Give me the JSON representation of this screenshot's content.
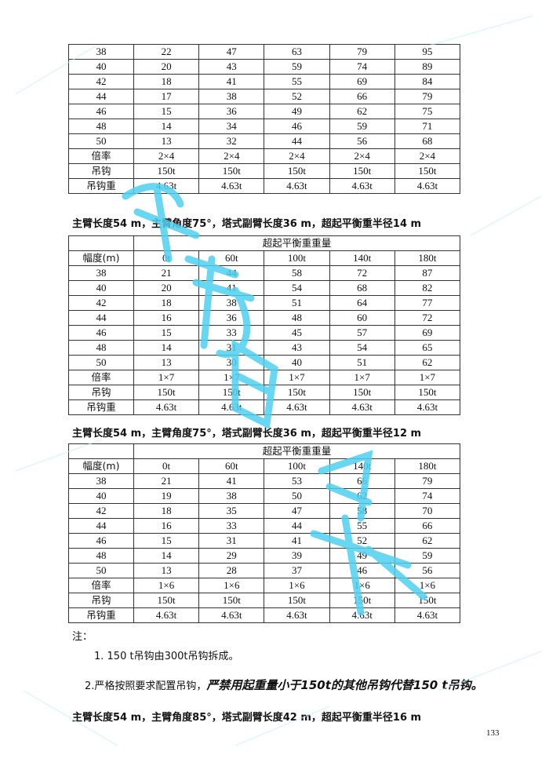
{
  "tables": [
    {
      "group_header": null,
      "col_headers": null,
      "rows": [
        [
          "38",
          "22",
          "47",
          "63",
          "79",
          "95"
        ],
        [
          "40",
          "20",
          "43",
          "59",
          "74",
          "89"
        ],
        [
          "42",
          "18",
          "41",
          "55",
          "69",
          "84"
        ],
        [
          "44",
          "17",
          "38",
          "52",
          "66",
          "79"
        ],
        [
          "46",
          "15",
          "36",
          "49",
          "62",
          "75"
        ],
        [
          "48",
          "14",
          "34",
          "46",
          "59",
          "71"
        ],
        [
          "50",
          "13",
          "32",
          "44",
          "56",
          "68"
        ],
        [
          "倍率",
          "2×4",
          "2×4",
          "2×4",
          "2×4",
          "2×4"
        ],
        [
          "吊钩",
          "150t",
          "150t",
          "150t",
          "150t",
          "150t"
        ],
        [
          "吊钩重",
          "4.63t",
          "4.63t",
          "4.63t",
          "4.63t",
          "4.63t"
        ]
      ]
    },
    {
      "group_header": "超起平衡重重量",
      "col_headers": [
        "幅度(m)",
        "0t",
        "60t",
        "100t",
        "140t",
        "180t"
      ],
      "rows": [
        [
          "38",
          "21",
          "44",
          "58",
          "72",
          "87"
        ],
        [
          "40",
          "20",
          "41",
          "54",
          "68",
          "82"
        ],
        [
          "42",
          "18",
          "38",
          "51",
          "64",
          "77"
        ],
        [
          "44",
          "16",
          "36",
          "48",
          "60",
          "72"
        ],
        [
          "46",
          "15",
          "33",
          "45",
          "57",
          "69"
        ],
        [
          "48",
          "14",
          "31",
          "43",
          "54",
          "65"
        ],
        [
          "50",
          "13",
          "30",
          "40",
          "51",
          "62"
        ],
        [
          "倍率",
          "1×7",
          "1×7",
          "1×7",
          "1×7",
          "1×7"
        ],
        [
          "吊钩",
          "150t",
          "150t",
          "150t",
          "150t",
          "150t"
        ],
        [
          "吊钩重",
          "4.63t",
          "4.63t",
          "4.63t",
          "4.63t",
          "4.63t"
        ]
      ]
    },
    {
      "group_header": "超起平衡重重量",
      "col_headers": [
        "幅度(m)",
        "0t",
        "60t",
        "100t",
        "140t",
        "180t"
      ],
      "rows": [
        [
          "38",
          "21",
          "41",
          "53",
          "66",
          "79"
        ],
        [
          "40",
          "19",
          "38",
          "50",
          "62",
          "74"
        ],
        [
          "42",
          "18",
          "35",
          "47",
          "58",
          "70"
        ],
        [
          "44",
          "16",
          "33",
          "44",
          "55",
          "66"
        ],
        [
          "46",
          "15",
          "31",
          "41",
          "52",
          "62"
        ],
        [
          "48",
          "14",
          "29",
          "39",
          "49",
          "59"
        ],
        [
          "50",
          "13",
          "28",
          "37",
          "46",
          "56"
        ],
        [
          "倍率",
          "1×6",
          "1×6",
          "1×6",
          "1×6",
          "1×6"
        ],
        [
          "吊钩",
          "150t",
          "150t",
          "150t",
          "150t",
          "150t"
        ],
        [
          "吊钩重",
          "4.63t",
          "4.63t",
          "4.63t",
          "4.63t",
          "4.63t"
        ]
      ]
    }
  ],
  "headings": [
    "主臂长度54 m，主臂角度75°，塔式副臂长度36 m，超起平衡重半径14 m",
    "主臂长度54 m，主臂角度75°，塔式副臂长度36 m，超起平衡重半径12 m",
    "主臂长度54 m，主臂角度85°，塔式副臂长度42 m，超起平衡重半径16 m"
  ],
  "notes": {
    "label": "注：",
    "item1": "1. 150 t吊钩由300t吊钩拆成。",
    "item2_prefix": "2.严格按照要求配置吊钩，",
    "item2_emphasis": "严禁用起重量小于150t的其他吊钩代替150 t吊钩。"
  },
  "page_number": "133",
  "watermark": {
    "text": "成都吊装",
    "color": "#4fd0f0"
  }
}
